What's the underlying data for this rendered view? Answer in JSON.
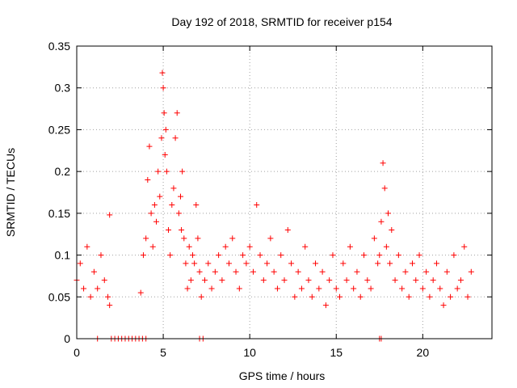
{
  "chart_data": {
    "type": "scatter",
    "title": "Day 192 of 2018, SRMTID for receiver p154",
    "xlabel": "GPS time / hours",
    "ylabel": "SRMTID / TECUs",
    "xlim": [
      0,
      24
    ],
    "ylim": [
      0,
      0.35
    ],
    "xticks": [
      0,
      5,
      10,
      15,
      20
    ],
    "xtick_labels": [
      "0",
      "5",
      "10",
      "15",
      "20"
    ],
    "yticks": [
      0,
      0.05,
      0.1,
      0.15,
      0.2,
      0.25,
      0.3,
      0.35
    ],
    "ytick_labels": [
      "0",
      "0.05",
      "0.1",
      "0.15",
      "0.2",
      "0.25",
      "0.3",
      "0.35"
    ],
    "grid": true,
    "marker": "plus",
    "color": "#ff0000",
    "series": [
      {
        "name": "SRMTID",
        "x": [
          0.0,
          0.2,
          0.4,
          0.6,
          0.8,
          1.0,
          1.2,
          1.4,
          1.6,
          1.8,
          1.9,
          1.9,
          3.7,
          3.85,
          4.0,
          4.1,
          4.2,
          4.3,
          4.4,
          4.5,
          4.6,
          4.7,
          4.8,
          4.9,
          4.95,
          5.0,
          5.05,
          5.1,
          5.15,
          5.2,
          5.3,
          5.4,
          5.5,
          5.6,
          5.7,
          5.8,
          5.9,
          6.0,
          6.05,
          6.1,
          6.2,
          6.3,
          6.4,
          6.5,
          6.6,
          6.7,
          6.8,
          6.9,
          7.0,
          7.1,
          7.2,
          7.4,
          7.6,
          7.8,
          8.0,
          8.2,
          8.4,
          8.6,
          8.8,
          9.0,
          9.2,
          9.4,
          9.6,
          9.8,
          10.0,
          10.2,
          10.4,
          10.6,
          10.8,
          11.0,
          11.2,
          11.4,
          11.6,
          11.8,
          12.0,
          12.2,
          12.4,
          12.6,
          12.8,
          13.0,
          13.2,
          13.4,
          13.6,
          13.8,
          14.0,
          14.2,
          14.4,
          14.6,
          14.8,
          15.0,
          15.2,
          15.4,
          15.6,
          15.8,
          16.0,
          16.2,
          16.4,
          16.6,
          16.8,
          17.0,
          17.2,
          17.4,
          17.5,
          17.6,
          17.7,
          17.8,
          17.9,
          18.0,
          18.1,
          18.2,
          18.4,
          18.6,
          18.8,
          19.0,
          19.2,
          19.4,
          19.6,
          19.8,
          20.0,
          20.2,
          20.4,
          20.6,
          20.8,
          21.0,
          21.2,
          21.4,
          21.6,
          21.8,
          22.0,
          22.2,
          22.4,
          22.6,
          22.8,
          1.2,
          2.0,
          2.2,
          2.4,
          2.6,
          2.8,
          3.0,
          3.2,
          3.4,
          3.6,
          3.8,
          4.0,
          7.1,
          7.3,
          17.5,
          17.6
        ],
        "y": [
          0.07,
          0.09,
          0.06,
          0.11,
          0.05,
          0.08,
          0.06,
          0.1,
          0.07,
          0.05,
          0.148,
          0.04,
          0.055,
          0.1,
          0.12,
          0.19,
          0.23,
          0.15,
          0.11,
          0.16,
          0.14,
          0.2,
          0.17,
          0.24,
          0.318,
          0.3,
          0.27,
          0.22,
          0.25,
          0.2,
          0.13,
          0.1,
          0.16,
          0.18,
          0.24,
          0.27,
          0.15,
          0.17,
          0.13,
          0.2,
          0.12,
          0.09,
          0.06,
          0.11,
          0.07,
          0.1,
          0.09,
          0.16,
          0.12,
          0.08,
          0.05,
          0.07,
          0.09,
          0.06,
          0.08,
          0.1,
          0.07,
          0.11,
          0.09,
          0.12,
          0.08,
          0.06,
          0.1,
          0.09,
          0.11,
          0.08,
          0.16,
          0.1,
          0.07,
          0.09,
          0.12,
          0.08,
          0.06,
          0.1,
          0.07,
          0.13,
          0.09,
          0.05,
          0.08,
          0.06,
          0.11,
          0.07,
          0.05,
          0.09,
          0.06,
          0.08,
          0.04,
          0.07,
          0.1,
          0.06,
          0.05,
          0.09,
          0.07,
          0.11,
          0.06,
          0.08,
          0.05,
          0.1,
          0.07,
          0.06,
          0.12,
          0.09,
          0.1,
          0.14,
          0.21,
          0.18,
          0.11,
          0.15,
          0.09,
          0.13,
          0.07,
          0.1,
          0.06,
          0.08,
          0.05,
          0.09,
          0.07,
          0.1,
          0.06,
          0.08,
          0.05,
          0.07,
          0.09,
          0.06,
          0.04,
          0.08,
          0.05,
          0.1,
          0.06,
          0.07,
          0.11,
          0.05,
          0.08,
          0.0,
          0.0,
          0.0,
          0.0,
          0.0,
          0.0,
          0.0,
          0.0,
          0.0,
          0.0,
          0.0,
          0.0,
          0.0,
          0.0,
          0.0,
          0.0
        ]
      }
    ]
  }
}
